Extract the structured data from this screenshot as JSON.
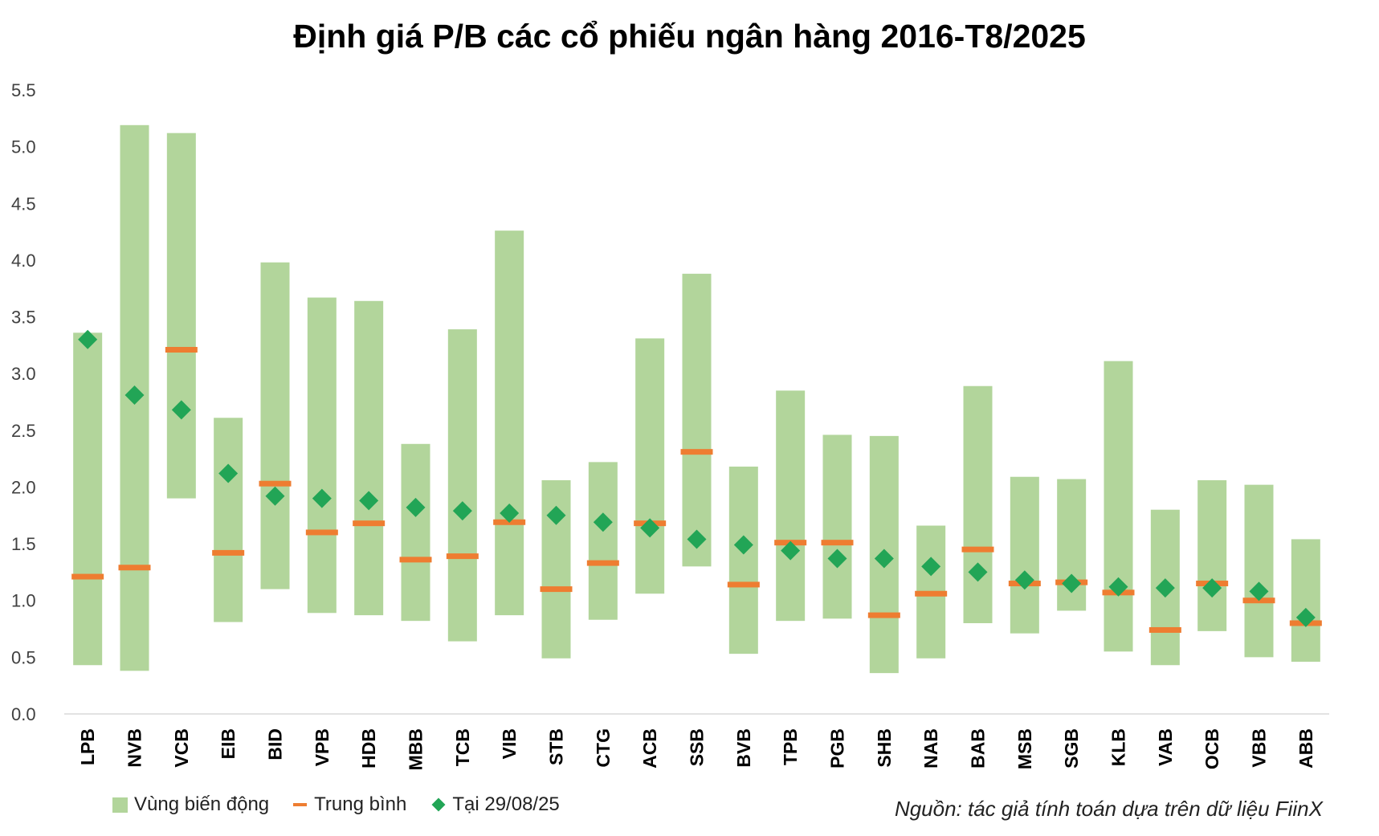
{
  "chart_data": {
    "type": "range-bar",
    "title": "Định giá P/B các cổ phiếu ngân hàng 2016-T8/2025",
    "ylim": [
      0,
      5.5
    ],
    "yticks": [
      "0.0",
      "0.5",
      "1.0",
      "1.5",
      "2.0",
      "2.5",
      "3.0",
      "3.5",
      "4.0",
      "4.5",
      "5.0",
      "5.5"
    ],
    "gridlines": false,
    "legend_position": "bottom-left",
    "categories": [
      "LPB",
      "NVB",
      "VCB",
      "EIB",
      "BID",
      "VPB",
      "HDB",
      "MBB",
      "TCB",
      "VIB",
      "STB",
      "CTG",
      "ACB",
      "SSB",
      "BVB",
      "TPB",
      "PGB",
      "SHB",
      "NAB",
      "BAB",
      "MSB",
      "SGB",
      "KLB",
      "VAB",
      "OCB",
      "VBB",
      "ABB"
    ],
    "series": [
      {
        "name": "Vùng biến động",
        "kind": "range",
        "low": [
          0.43,
          0.38,
          1.9,
          0.81,
          1.1,
          0.89,
          0.87,
          0.82,
          0.64,
          0.87,
          0.49,
          0.83,
          1.06,
          1.3,
          0.53,
          0.82,
          0.84,
          0.36,
          0.49,
          0.8,
          0.71,
          0.91,
          0.55,
          0.43,
          0.73,
          0.5,
          0.46
        ],
        "high": [
          3.36,
          5.19,
          5.12,
          2.61,
          3.98,
          3.67,
          3.64,
          2.38,
          3.39,
          4.26,
          2.06,
          2.22,
          3.31,
          3.88,
          2.18,
          2.85,
          2.46,
          2.45,
          1.66,
          2.89,
          2.09,
          2.07,
          3.11,
          1.8,
          2.06,
          2.02,
          1.54
        ]
      },
      {
        "name": "Trung bình",
        "kind": "average",
        "values": [
          1.21,
          1.29,
          3.21,
          1.42,
          2.03,
          1.6,
          1.68,
          1.36,
          1.39,
          1.69,
          1.1,
          1.33,
          1.68,
          2.31,
          1.14,
          1.51,
          1.51,
          0.87,
          1.06,
          1.45,
          1.15,
          1.16,
          1.07,
          0.74,
          1.15,
          1.0,
          0.8
        ]
      },
      {
        "name": "Tại 29/08/25",
        "kind": "current",
        "values": [
          3.3,
          2.81,
          2.68,
          2.12,
          1.92,
          1.9,
          1.88,
          1.82,
          1.79,
          1.77,
          1.75,
          1.69,
          1.64,
          1.54,
          1.49,
          1.44,
          1.37,
          1.37,
          1.3,
          1.25,
          1.18,
          1.15,
          1.12,
          1.11,
          1.11,
          1.08,
          0.85
        ]
      }
    ]
  },
  "colors": {
    "range": "#b2d59b",
    "average": "#ee7d31",
    "current": "#22a556",
    "axis": "#d9d9d9"
  },
  "legend": {
    "range_label": "Vùng biến động",
    "average_label": "Trung bình",
    "current_label": "Tại 29/08/25"
  },
  "source_note": "Nguồn: tác giả tính toán dựa trên dữ liệu FiinX"
}
